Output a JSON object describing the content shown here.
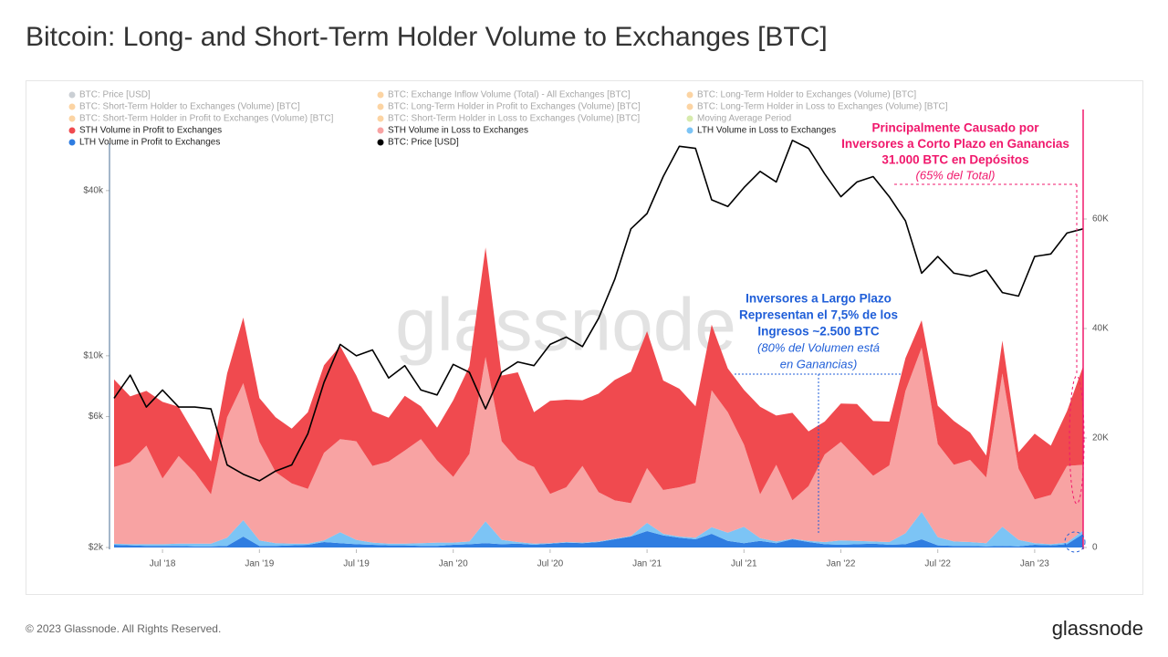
{
  "chart_data": {
    "type": "area",
    "title": "Bitcoin: Long- and Short-Term Holder Volume to Exchanges [BTC]",
    "watermark": "glassnode",
    "footer": "© 2023 Glassnode. All Rights Reserved.",
    "brand": "glassnode",
    "legend_inactive": [
      {
        "name": "BTC: Price [USD]",
        "color": "#7b8794"
      },
      {
        "name": "BTC: Exchange Inflow Volume (Total) - All Exchanges [BTC]",
        "color": "#f7931a"
      },
      {
        "name": "BTC: Long-Term Holder to Exchanges (Volume) [BTC]",
        "color": "#f7931a"
      },
      {
        "name": "BTC: Short-Term Holder to Exchanges (Volume) [BTC]",
        "color": "#f7931a"
      },
      {
        "name": "BTC: Long-Term Holder in Profit to Exchanges (Volume) [BTC]",
        "color": "#f7931a"
      },
      {
        "name": "BTC: Long-Term Holder in Loss to Exchanges (Volume) [BTC]",
        "color": "#f7931a"
      },
      {
        "name": "BTC: Short-Term Holder in Profit to Exchanges (Volume) [BTC]",
        "color": "#f7931a"
      },
      {
        "name": "BTC: Short-Term Holder in Loss to Exchanges (Volume) [BTC]",
        "color": "#f7931a"
      },
      {
        "name": "Moving Average Period",
        "color": "#9acd32"
      }
    ],
    "x": [
      "2018-04",
      "2018-05",
      "2018-06",
      "2018-07",
      "2018-08",
      "2018-09",
      "2018-10",
      "2018-11",
      "2018-12",
      "2019-01",
      "2019-02",
      "2019-03",
      "2019-04",
      "2019-05",
      "2019-06",
      "2019-07",
      "2019-08",
      "2019-09",
      "2019-10",
      "2019-11",
      "2019-12",
      "2020-01",
      "2020-02",
      "2020-03",
      "2020-04",
      "2020-05",
      "2020-06",
      "2020-07",
      "2020-08",
      "2020-09",
      "2020-10",
      "2020-11",
      "2020-12",
      "2021-01",
      "2021-02",
      "2021-03",
      "2021-04",
      "2021-05",
      "2021-06",
      "2021-07",
      "2021-08",
      "2021-09",
      "2021-10",
      "2021-11",
      "2021-12",
      "2022-01",
      "2022-02",
      "2022-03",
      "2022-04",
      "2022-05",
      "2022-06",
      "2022-07",
      "2022-08",
      "2022-09",
      "2022-10",
      "2022-11",
      "2022-12",
      "2023-01",
      "2023-02",
      "2023-03",
      "2023-04"
    ],
    "xlim": [
      "2018-04",
      "2023-04"
    ],
    "xticks": [
      {
        "value": "2018-07",
        "label": "Jul '18"
      },
      {
        "value": "2019-01",
        "label": "Jan '19"
      },
      {
        "value": "2019-07",
        "label": "Jul '19"
      },
      {
        "value": "2020-01",
        "label": "Jan '20"
      },
      {
        "value": "2020-07",
        "label": "Jul '20"
      },
      {
        "value": "2021-01",
        "label": "Jan '21"
      },
      {
        "value": "2021-07",
        "label": "Jul '21"
      },
      {
        "value": "2022-01",
        "label": "Jan '22"
      },
      {
        "value": "2022-07",
        "label": "Jul '22"
      },
      {
        "value": "2023-01",
        "label": "Jan '23"
      }
    ],
    "ylim": [
      2000,
      79000
    ],
    "ylog": true,
    "yticks": [
      {
        "value": 2000,
        "label": "$2k"
      },
      {
        "value": 6000,
        "label": "$6k"
      },
      {
        "value": 10000,
        "label": "$10k"
      },
      {
        "value": 40000,
        "label": "$40k"
      }
    ],
    "y2lim": [
      0,
      80000
    ],
    "y2ticks": [
      0,
      {
        "value": 20000,
        "label": "20K"
      },
      {
        "value": 40000,
        "label": "40K"
      },
      {
        "value": 60000,
        "label": "60K"
      }
    ],
    "series": [
      {
        "name": "STH Volume in Profit to Exchanges",
        "color": "#f04a4f",
        "type": "area",
        "axis": "y2",
        "values": [
          16000,
          12000,
          10000,
          14000,
          9000,
          7000,
          6000,
          8000,
          12000,
          8000,
          10000,
          10000,
          14000,
          16000,
          17000,
          12000,
          10000,
          8000,
          10000,
          6000,
          6000,
          14000,
          16000,
          20000,
          12000,
          16000,
          10000,
          17000,
          16000,
          12000,
          18000,
          22000,
          24000,
          25000,
          20000,
          18000,
          14000,
          12000,
          8000,
          10000,
          16000,
          9000,
          16000,
          10000,
          6000,
          7000,
          10000,
          10000,
          8000,
          6000,
          5000,
          7000,
          8000,
          5000,
          4000,
          6000,
          3000,
          12000,
          9000,
          10000,
          18000
        ]
      },
      {
        "name": "STH Volume in Loss to Exchanges",
        "color": "#f8a3a3",
        "type": "area",
        "axis": "y2",
        "values": [
          14000,
          15000,
          18000,
          12000,
          16000,
          13000,
          9000,
          22000,
          25000,
          18000,
          13000,
          11000,
          10000,
          16000,
          17000,
          18000,
          14000,
          15000,
          17000,
          19000,
          15000,
          12000,
          16000,
          30000,
          18000,
          15000,
          14000,
          9000,
          10000,
          14000,
          9000,
          7000,
          6000,
          10000,
          8000,
          9000,
          10000,
          25000,
          22000,
          15000,
          8000,
          14000,
          7000,
          10000,
          16000,
          18000,
          15000,
          12000,
          14000,
          26000,
          30000,
          17000,
          14000,
          15000,
          12000,
          28000,
          13000,
          8000,
          9000,
          14000,
          12000
        ]
      },
      {
        "name": "LTH Volume in Loss to Exchanges",
        "color": "#7cc4f5",
        "type": "area",
        "axis": "y2",
        "values": [
          200,
          200,
          300,
          300,
          400,
          500,
          500,
          1500,
          3000,
          1000,
          500,
          300,
          200,
          300,
          2000,
          800,
          400,
          300,
          300,
          500,
          600,
          400,
          500,
          4000,
          800,
          300,
          200,
          100,
          100,
          100,
          100,
          100,
          100,
          1500,
          300,
          200,
          300,
          1200,
          1500,
          3000,
          500,
          300,
          100,
          200,
          400,
          800,
          600,
          400,
          500,
          2000,
          5000,
          1500,
          800,
          700,
          600,
          3500,
          1200,
          300,
          200,
          300,
          600
        ]
      },
      {
        "name": "LTH Volume in Profit to Exchanges",
        "color": "#2f7de1",
        "type": "area",
        "axis": "y2",
        "values": [
          500,
          400,
          300,
          300,
          300,
          200,
          200,
          300,
          2000,
          300,
          300,
          400,
          500,
          1000,
          800,
          600,
          500,
          400,
          400,
          300,
          300,
          500,
          600,
          800,
          600,
          700,
          500,
          700,
          900,
          800,
          1000,
          1500,
          2000,
          3000,
          2200,
          1800,
          1500,
          2500,
          1200,
          800,
          1200,
          800,
          1500,
          1000,
          600,
          500,
          600,
          700,
          500,
          600,
          1500,
          400,
          300,
          300,
          200,
          300,
          200,
          500,
          400,
          600,
          2500
        ]
      },
      {
        "name": "BTC: Price [USD]",
        "color": "#000000",
        "type": "line",
        "axis": "y",
        "values": [
          7000,
          8500,
          6500,
          7500,
          6500,
          6500,
          6400,
          4000,
          3700,
          3500,
          3800,
          4000,
          5200,
          8000,
          11000,
          10000,
          10500,
          8300,
          9200,
          7500,
          7200,
          9300,
          8700,
          6400,
          8700,
          9500,
          9200,
          11000,
          11700,
          10800,
          13700,
          19000,
          29000,
          33000,
          45000,
          58000,
          57000,
          37000,
          35000,
          41000,
          47000,
          43000,
          61000,
          57000,
          46000,
          38000,
          43000,
          45000,
          38000,
          31000,
          20000,
          23000,
          20000,
          19500,
          20500,
          17000,
          16500,
          23000,
          23500,
          28000,
          29000
        ]
      }
    ],
    "annotations": [
      {
        "color": "#f0186c",
        "lines": [
          "Principalmente Causado por",
          "Inversores a Corto Plazo en Ganancias",
          "31.000 BTC en Depósitos"
        ],
        "note": "(65% del Total)"
      },
      {
        "color": "#1f5ed8",
        "lines": [
          "Inversores a Largo Plazo",
          "Representan el 7,5% de los",
          "Ingresos ~2.500 BTC"
        ],
        "note_lines": [
          "(80% del Volumen está",
          "en Ganancias)"
        ]
      }
    ]
  }
}
